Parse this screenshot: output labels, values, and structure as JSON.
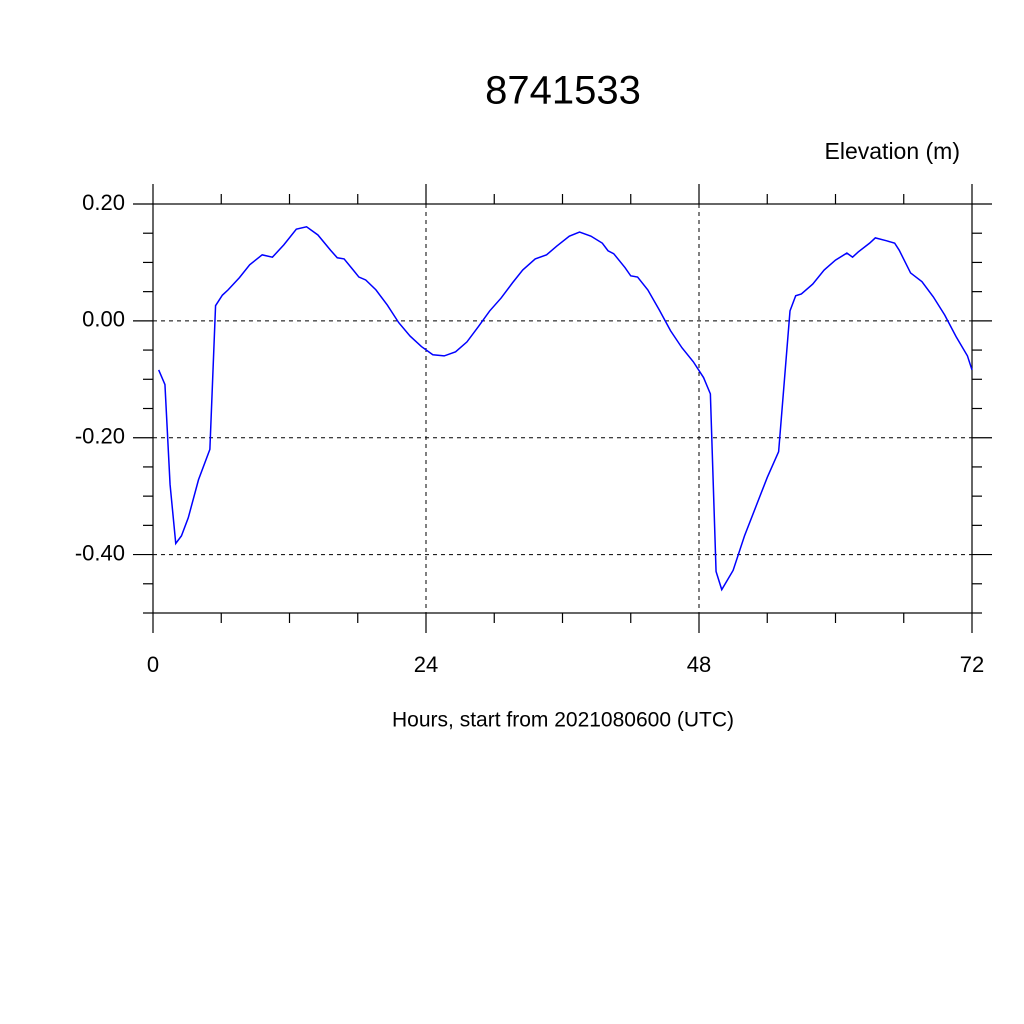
{
  "chart_data": {
    "type": "line",
    "title": "8741533",
    "y_label": "Elevation (m)",
    "x_label": "Hours, start from 2021080600 (UTC)",
    "x": [
      0.5,
      1.05,
      1.5,
      2.0,
      2.5,
      3.1,
      4.0,
      5.0,
      5.5,
      6.1,
      6.6,
      7.6,
      8.5,
      9.6,
      10.5,
      11.5,
      12.6,
      13.5,
      14.5,
      15.6,
      16.2,
      16.8,
      17.6,
      18.1,
      18.7,
      19.6,
      20.6,
      21.6,
      22.6,
      23.6,
      24.6,
      25.6,
      26.6,
      27.6,
      28.6,
      29.6,
      30.6,
      31.6,
      32.5,
      33.6,
      34.6,
      35.5,
      36.6,
      37.5,
      38.5,
      39.5,
      40.0,
      40.5,
      41.5,
      42.0,
      42.6,
      43.5,
      44.5,
      45.5,
      46.5,
      47.5,
      48.4,
      49.0,
      49.5,
      50.0,
      51.0,
      52.0,
      53.0,
      54.0,
      55.0,
      56.0,
      56.5,
      57.0,
      58.0,
      59.0,
      60.0,
      61.0,
      61.5,
      62.0,
      63.0,
      63.5,
      64.5,
      65.2,
      65.6,
      66.6,
      67.6,
      68.6,
      69.6,
      70.6,
      71.6,
      72.0
    ],
    "series": [
      {
        "color": "#0000ff",
        "values": [
          -0.084,
          -0.109,
          -0.28,
          -0.381,
          -0.368,
          -0.337,
          -0.272,
          -0.22,
          0.026,
          0.044,
          0.053,
          0.074,
          0.096,
          0.113,
          0.109,
          0.13,
          0.157,
          0.161,
          0.147,
          0.121,
          0.108,
          0.106,
          0.087,
          0.075,
          0.07,
          0.053,
          0.027,
          -0.003,
          -0.026,
          -0.044,
          -0.058,
          -0.06,
          -0.053,
          -0.036,
          -0.01,
          0.017,
          0.039,
          0.065,
          0.087,
          0.106,
          0.113,
          0.128,
          0.145,
          0.152,
          0.145,
          0.133,
          0.12,
          0.115,
          0.091,
          0.077,
          0.075,
          0.053,
          0.019,
          -0.017,
          -0.046,
          -0.07,
          -0.097,
          -0.125,
          -0.429,
          -0.46,
          -0.427,
          -0.368,
          -0.318,
          -0.268,
          -0.224,
          0.017,
          0.043,
          0.046,
          0.063,
          0.087,
          0.104,
          0.116,
          0.109,
          0.118,
          0.133,
          0.142,
          0.137,
          0.133,
          0.121,
          0.082,
          0.067,
          0.041,
          0.01,
          -0.027,
          -0.06,
          -0.084
        ]
      }
    ],
    "xlim": [
      0,
      72
    ],
    "xticks": [
      0,
      24,
      48,
      72
    ],
    "ylim": [
      -0.5,
      0.2
    ],
    "yticks": [
      {
        "value": 0.2,
        "label": "0.20"
      },
      {
        "value": 0,
        "label": "0.00"
      },
      {
        "value": -0.2,
        "label": "-0.20"
      },
      {
        "value": -0.4,
        "label": "-0.40"
      }
    ],
    "grid": true
  }
}
